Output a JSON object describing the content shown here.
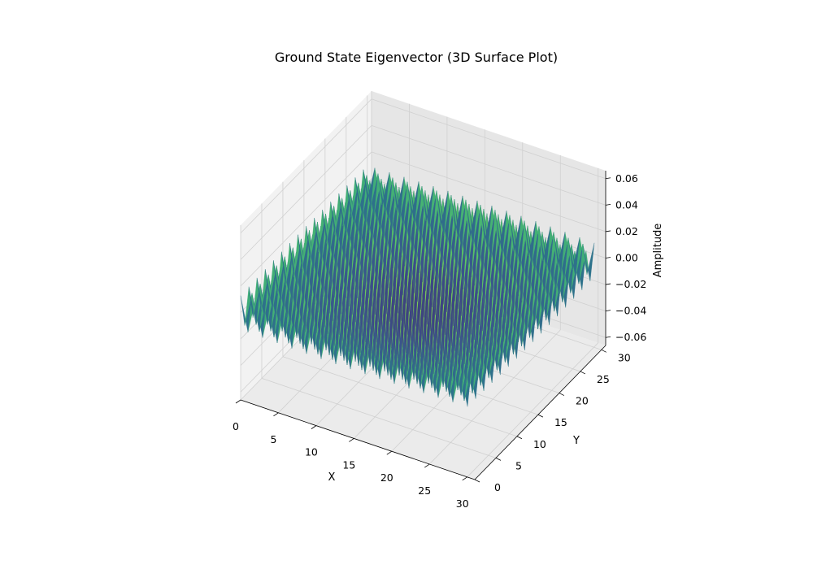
{
  "chart_data": {
    "type": "surface",
    "title": "Ground State Eigenvector (3D Surface Plot)",
    "xlabel": "X",
    "ylabel": "Y",
    "zlabel": "Amplitude",
    "xlim": [
      0,
      31
    ],
    "ylim": [
      0,
      31
    ],
    "zlim": [
      -0.066,
      0.066
    ],
    "xticks": [
      "0",
      "5",
      "10",
      "15",
      "20",
      "25",
      "30"
    ],
    "yticks": [
      "0",
      "5",
      "10",
      "15",
      "20",
      "25",
      "30"
    ],
    "zticks": [
      "0.06",
      "0.04",
      "0.02",
      "0.00",
      "−0.02",
      "−0.04",
      "−0.06"
    ],
    "xtick_values": [
      0,
      5,
      10,
      15,
      20,
      25,
      30
    ],
    "ytick_values": [
      0,
      5,
      10,
      15,
      20,
      25,
      30
    ],
    "ztick_values": [
      0.06,
      0.04,
      0.02,
      0.0,
      -0.02,
      -0.04,
      -0.06
    ],
    "grid_size": [
      32,
      32
    ],
    "amplitude_range": [
      -0.06,
      0.06
    ],
    "colormap": "viridis",
    "colormap_stops": [
      "#440154",
      "#3b528b",
      "#21918c",
      "#5ec962",
      "#fde725"
    ],
    "pane_color": "#f2f2f2",
    "grid": true
  }
}
